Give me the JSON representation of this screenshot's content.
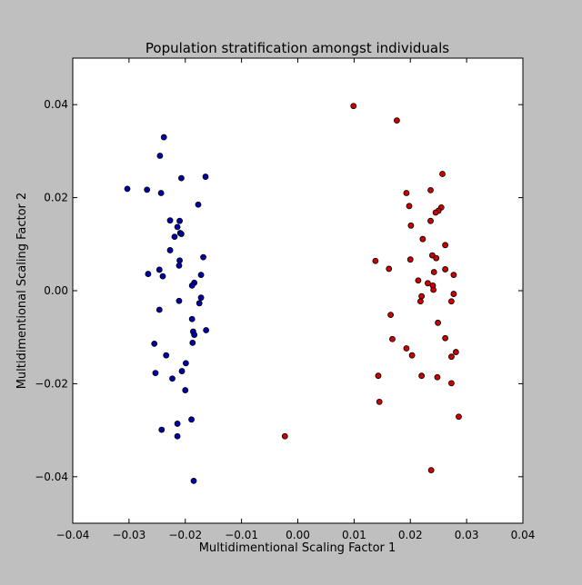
{
  "chart_data": {
    "type": "scatter",
    "title": "Population stratification amongst individuals",
    "xlabel": "Multidimentional Scaling Factor 1",
    "ylabel": "Multidimentional Scaling Factor 2",
    "xlim": [
      -0.04,
      0.04
    ],
    "ylim": [
      -0.05,
      0.05
    ],
    "xticks": [
      -0.04,
      -0.03,
      -0.02,
      -0.01,
      0.0,
      0.01,
      0.02,
      0.03,
      0.04
    ],
    "xtick_labels": [
      "−0.04",
      "−0.03",
      "−0.02",
      "−0.01",
      "0.00",
      "0.01",
      "0.02",
      "0.03",
      "0.04"
    ],
    "yticks": [
      0.04,
      0.02,
      0.0,
      -0.02,
      -0.04
    ],
    "ytick_labels": [
      "0.04",
      "0.02",
      "0.00",
      "−0.02",
      "−0.04"
    ],
    "grid": false,
    "series": [
      {
        "color": "#0000aa",
        "points": [
          [
            -0.0238,
            0.033
          ],
          [
            -0.0245,
            0.029
          ],
          [
            -0.0303,
            0.0219
          ],
          [
            -0.0268,
            0.0217
          ],
          [
            -0.0243,
            0.021
          ],
          [
            -0.0164,
            0.0245
          ],
          [
            -0.0207,
            0.0242
          ],
          [
            -0.0177,
            0.0185
          ],
          [
            -0.0227,
            0.0151
          ],
          [
            -0.021,
            0.015
          ],
          [
            -0.0214,
            0.0137
          ],
          [
            -0.0209,
            0.0124
          ],
          [
            -0.0207,
            0.0122
          ],
          [
            -0.0219,
            0.0116
          ],
          [
            -0.0227,
            0.0087
          ],
          [
            -0.0168,
            0.0072
          ],
          [
            -0.021,
            0.0065
          ],
          [
            -0.0211,
            0.0054
          ],
          [
            -0.0246,
            0.0045
          ],
          [
            -0.0266,
            0.0036
          ],
          [
            -0.024,
            0.0031
          ],
          [
            -0.0172,
            0.0034
          ],
          [
            -0.0184,
            0.0017
          ],
          [
            -0.0188,
            0.0011
          ],
          [
            -0.0172,
            -0.0015
          ],
          [
            -0.0211,
            -0.0022
          ],
          [
            -0.0175,
            -0.0027
          ],
          [
            -0.0246,
            -0.0041
          ],
          [
            -0.0188,
            -0.0061
          ],
          [
            -0.0163,
            -0.0085
          ],
          [
            -0.0186,
            -0.0088
          ],
          [
            -0.0184,
            -0.0095
          ],
          [
            -0.0255,
            -0.0114
          ],
          [
            -0.0187,
            -0.0112
          ],
          [
            -0.0234,
            -0.0139
          ],
          [
            -0.0199,
            -0.0156
          ],
          [
            -0.0253,
            -0.0177
          ],
          [
            -0.0206,
            -0.0173
          ],
          [
            -0.0223,
            -0.0189
          ],
          [
            -0.02,
            -0.0214
          ],
          [
            -0.0189,
            -0.0277
          ],
          [
            -0.0214,
            -0.0286
          ],
          [
            -0.0242,
            -0.0299
          ],
          [
            -0.0214,
            -0.0313
          ],
          [
            -0.0185,
            -0.0409
          ]
        ]
      },
      {
        "color": "#cc0000",
        "points": [
          [
            0.0099,
            0.0397
          ],
          [
            0.0176,
            0.0366
          ],
          [
            0.0257,
            0.0251
          ],
          [
            0.0236,
            0.0216
          ],
          [
            0.0193,
            0.021
          ],
          [
            0.0255,
            0.0179
          ],
          [
            0.0198,
            0.0182
          ],
          [
            0.025,
            0.0172
          ],
          [
            0.0245,
            0.0168
          ],
          [
            0.0236,
            0.015
          ],
          [
            0.0201,
            0.014
          ],
          [
            0.0222,
            0.0111
          ],
          [
            0.0262,
            0.0098
          ],
          [
            0.0239,
            0.0076
          ],
          [
            0.0246,
            0.007
          ],
          [
            0.02,
            0.0067
          ],
          [
            0.0138,
            0.0064
          ],
          [
            0.0162,
            0.0047
          ],
          [
            0.0262,
            0.0046
          ],
          [
            0.0242,
            0.004
          ],
          [
            0.0277,
            0.0034
          ],
          [
            0.0214,
            0.0022
          ],
          [
            0.0231,
            0.0016
          ],
          [
            0.024,
            0.0011
          ],
          [
            0.0241,
            0.0002
          ],
          [
            0.0277,
            -0.0007
          ],
          [
            0.022,
            -0.0012
          ],
          [
            0.0218,
            -0.0023
          ],
          [
            0.0273,
            -0.0023
          ],
          [
            0.0165,
            -0.0052
          ],
          [
            0.0249,
            -0.0069
          ],
          [
            0.0262,
            -0.0102
          ],
          [
            0.0168,
            -0.0104
          ],
          [
            0.0193,
            -0.0124
          ],
          [
            0.0281,
            -0.0132
          ],
          [
            0.0203,
            -0.0139
          ],
          [
            0.0273,
            -0.0142
          ],
          [
            0.0143,
            -0.0183
          ],
          [
            0.022,
            -0.0183
          ],
          [
            0.0248,
            -0.0186
          ],
          [
            0.0273,
            -0.0199
          ],
          [
            0.0145,
            -0.0239
          ],
          [
            0.0286,
            -0.0271
          ],
          [
            -0.0023,
            -0.0313
          ],
          [
            0.0237,
            -0.0386
          ]
        ]
      }
    ]
  }
}
